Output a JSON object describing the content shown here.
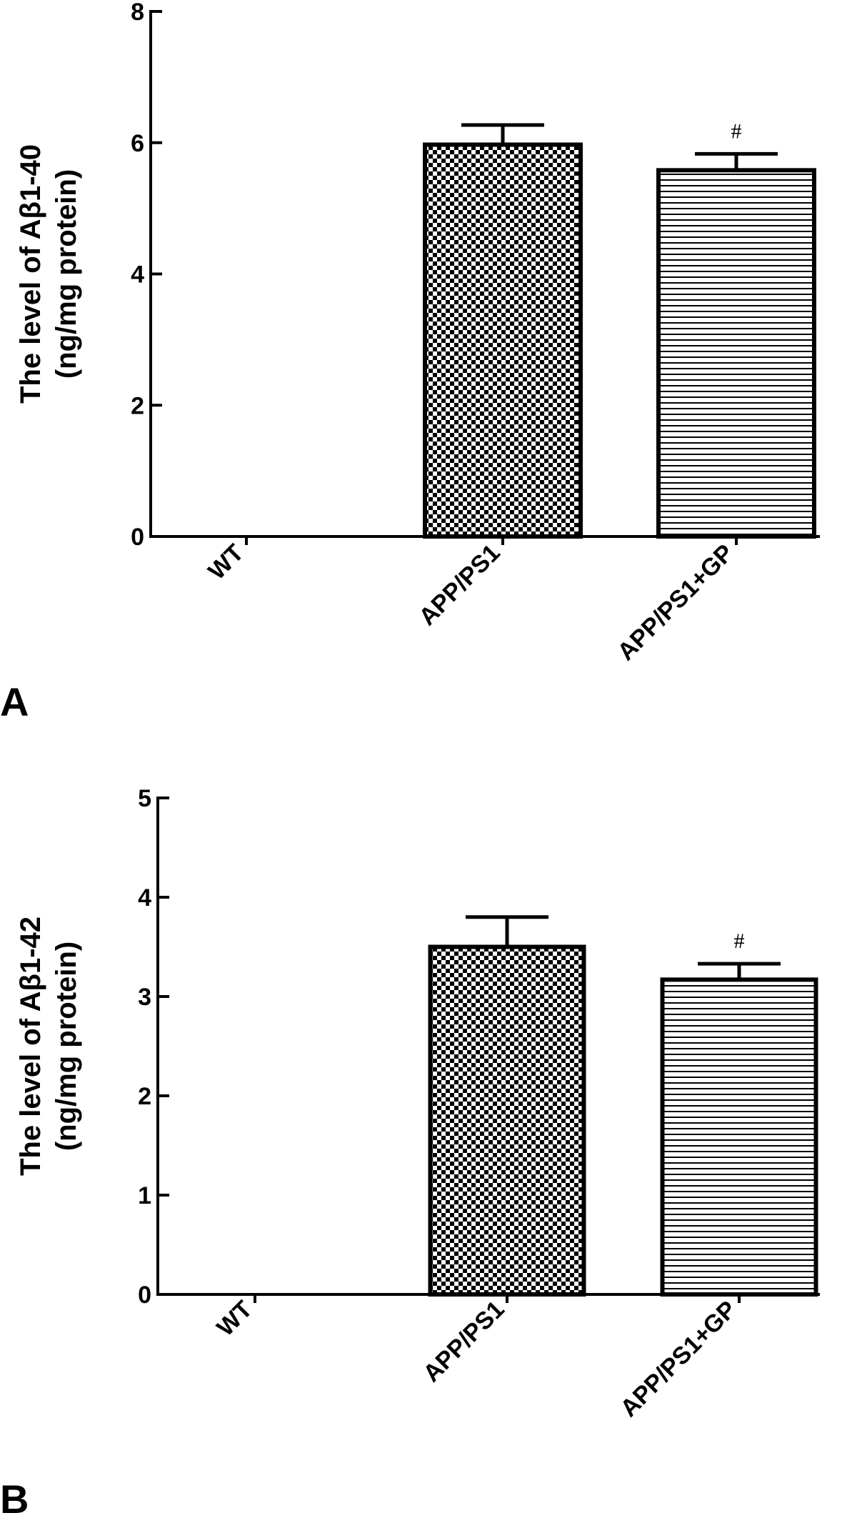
{
  "chart_data": [
    {
      "type": "bar",
      "panel_label": "A",
      "categories": [
        "WT",
        "APP/PS1",
        "APP/PS1+GP"
      ],
      "values": [
        0,
        5.97,
        5.58
      ],
      "errors": [
        0,
        0.3,
        0.25
      ],
      "annotations": [
        "",
        "",
        "#"
      ],
      "fills": [
        "none",
        "checker",
        "hstripes"
      ],
      "ylabel_line1": "The level of Aβ1-40",
      "ylabel_line2": "(ng/mg protein)",
      "ylim": [
        0,
        8
      ],
      "yticks": [
        0,
        2,
        4,
        6,
        8
      ],
      "grid": false
    },
    {
      "type": "bar",
      "panel_label": "B",
      "categories": [
        "WT",
        "APP/PS1",
        "APP/PS1+GP"
      ],
      "values": [
        0,
        3.5,
        3.17
      ],
      "errors": [
        0,
        0.3,
        0.16
      ],
      "annotations": [
        "",
        "",
        "#"
      ],
      "fills": [
        "none",
        "checker",
        "hstripes"
      ],
      "ylabel_line1": "The level of Aβ1-42",
      "ylabel_line2": "(ng/mg protein)",
      "ylim": [
        0,
        5
      ],
      "yticks": [
        0,
        1,
        2,
        3,
        4,
        5
      ],
      "grid": false
    }
  ]
}
